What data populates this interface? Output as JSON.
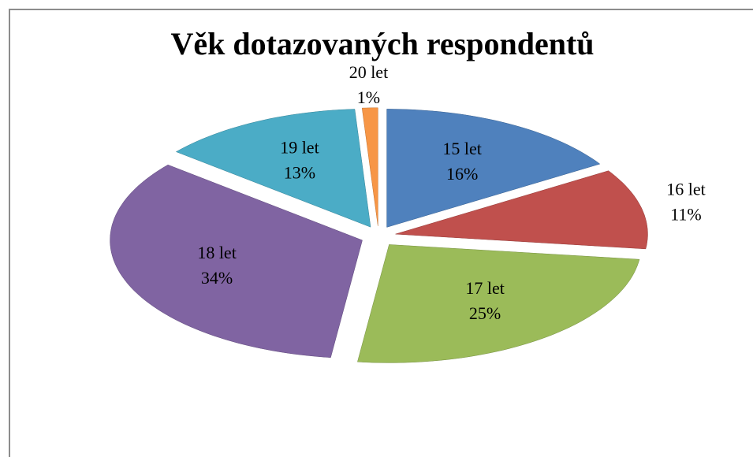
{
  "chart_data": {
    "type": "pie3d",
    "title": "Věk dotazovaných respondentů",
    "categories": [
      "15 let",
      "16 let",
      "17 let",
      "18 let",
      "19 let",
      "20 let"
    ],
    "values": [
      16,
      11,
      25,
      34,
      13,
      1
    ],
    "value_labels": [
      "16%",
      "11%",
      "25%",
      "34%",
      "13%",
      "1%"
    ],
    "colors": [
      "#4f81bd",
      "#c0504d",
      "#9bbb59",
      "#8064a2",
      "#4bacc6",
      "#f79646"
    ]
  }
}
